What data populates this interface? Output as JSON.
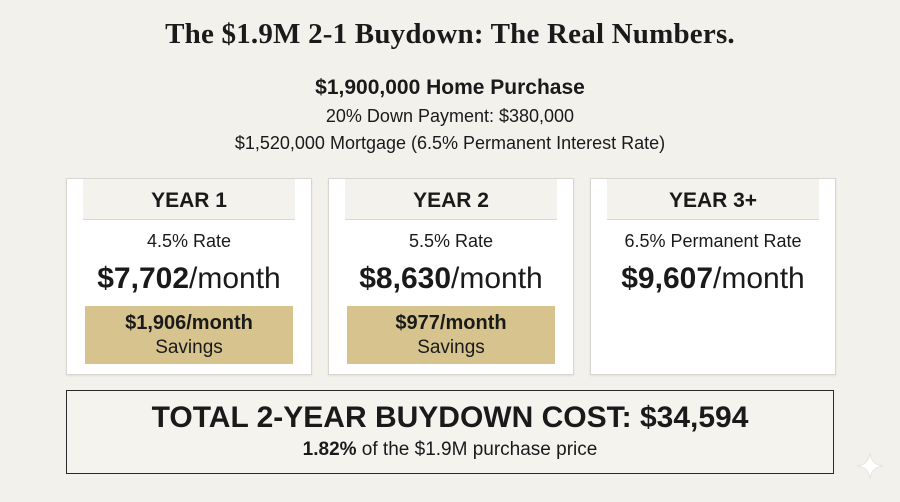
{
  "title": "The $1.9M 2-1 Buydown: The Real Numbers.",
  "summary": {
    "purchase": "$1,900,000 Home Purchase",
    "down_payment": "20% Down Payment: $380,000",
    "mortgage": "$1,520,000 Mortgage (6.5% Permanent Interest Rate)"
  },
  "cards": [
    {
      "header": "YEAR 1",
      "rate": "4.5% Rate",
      "payment_amount": "$7,702",
      "payment_unit": "/month",
      "savings_amount": "$1,906/month",
      "savings_label": "Savings"
    },
    {
      "header": "YEAR 2",
      "rate": "5.5% Rate",
      "payment_amount": "$8,630",
      "payment_unit": "/month",
      "savings_amount": "$977/month",
      "savings_label": "Savings"
    },
    {
      "header": "YEAR 3+",
      "rate": "6.5% Permanent Rate",
      "payment_amount": "$9,607",
      "payment_unit": "/month"
    }
  ],
  "total": {
    "headline": "TOTAL 2-YEAR BUYDOWN COST: $34,594",
    "percent": "1.82%",
    "percent_suffix": " of the $1.9M purchase price"
  },
  "colors": {
    "background": "#f3f1ec",
    "savings_highlight": "#d6c38e",
    "card": "#ffffff"
  },
  "icons": {
    "corner": "sparkle-icon"
  }
}
